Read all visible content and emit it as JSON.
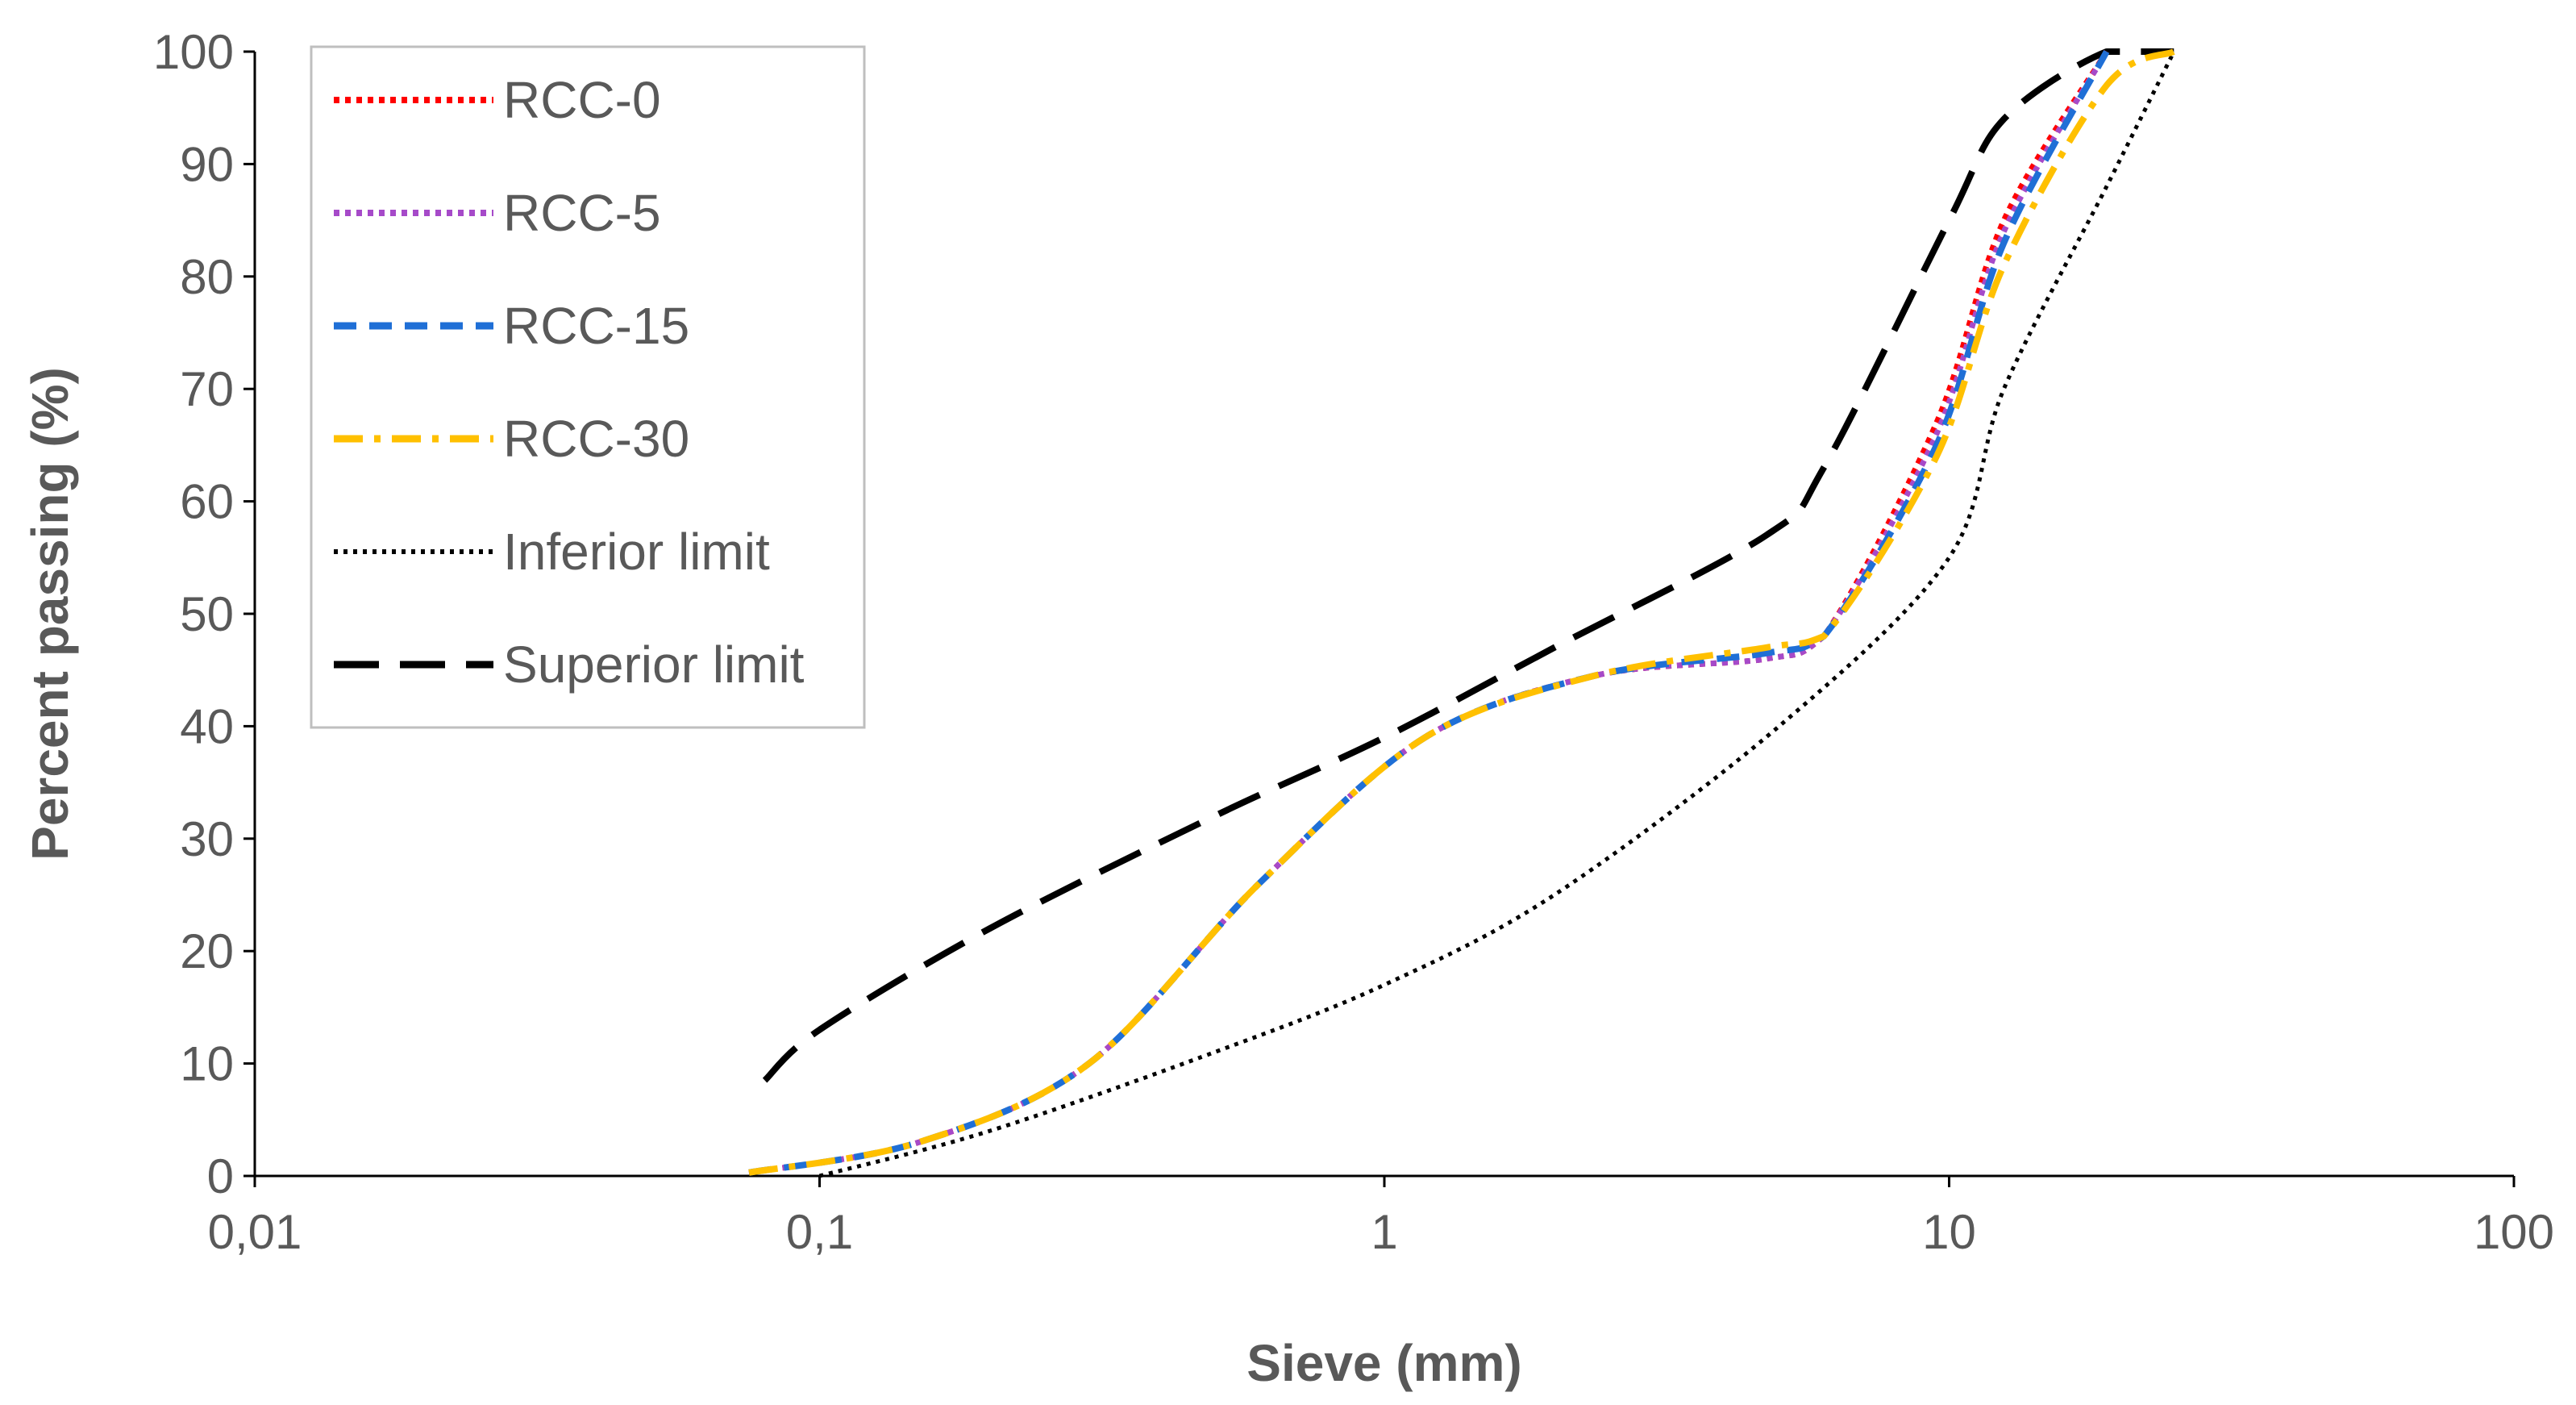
{
  "chart_data": {
    "type": "line",
    "x_scale": "log",
    "xlabel": "Sieve (mm)",
    "ylabel": "Percent passing  (%)",
    "xlim": [
      0.01,
      100
    ],
    "ylim": [
      0,
      100
    ],
    "x_ticks": [
      0.01,
      0.1,
      1,
      10,
      100
    ],
    "x_tick_labels": [
      "0,01",
      "0,1",
      "1",
      "10",
      "100"
    ],
    "y_ticks": [
      0,
      10,
      20,
      30,
      40,
      50,
      60,
      70,
      80,
      90,
      100
    ],
    "y_tick_labels": [
      "0",
      "10",
      "20",
      "30",
      "40",
      "50",
      "60",
      "70",
      "80",
      "90",
      "100"
    ],
    "grid": false,
    "legend_position": "top-left",
    "series": [
      {
        "name": "RCC-0",
        "color": "#FF0000",
        "style": "dotted",
        "x": [
          0.075,
          0.15,
          0.3,
          0.6,
          1.18,
          2.36,
          4.75,
          6,
          9.5,
          12.5,
          19
        ],
        "y": [
          0.3,
          3,
          10,
          26,
          39,
          44.5,
          46,
          48,
          67,
          85,
          100
        ]
      },
      {
        "name": "RCC-5",
        "color": "#A64AC9",
        "style": "dotted",
        "x": [
          0.075,
          0.15,
          0.3,
          0.6,
          1.18,
          2.36,
          4.75,
          6,
          9.5,
          12.5,
          19
        ],
        "y": [
          0.3,
          3,
          10,
          26,
          39,
          44.5,
          46,
          48,
          66,
          84,
          100
        ]
      },
      {
        "name": "RCC-15",
        "color": "#1F6FD6",
        "style": "dashed",
        "x": [
          0.075,
          0.15,
          0.3,
          0.6,
          1.18,
          2.36,
          4.75,
          6,
          9.5,
          12.5,
          19
        ],
        "y": [
          0.3,
          3,
          10,
          26,
          39,
          44.5,
          46.5,
          48,
          65,
          83,
          100
        ]
      },
      {
        "name": "RCC-30",
        "color": "#FFC000",
        "style": "dashdot",
        "x": [
          0.075,
          0.15,
          0.3,
          0.6,
          1.18,
          2.36,
          4.75,
          6,
          9.5,
          12.5,
          19,
          25
        ],
        "y": [
          0.3,
          3,
          10,
          26,
          39,
          44.5,
          47,
          48,
          64,
          81,
          97,
          100
        ]
      },
      {
        "name": "Inferior limit",
        "color": "#000000",
        "style": "dotted-fine",
        "x": [
          0.1,
          0.2,
          0.5,
          1,
          2,
          5,
          10,
          12.5,
          19,
          25
        ],
        "y": [
          0,
          4,
          11,
          17,
          25,
          40,
          55,
          70,
          88,
          100
        ]
      },
      {
        "name": "Superior limit",
        "color": "#000000",
        "style": "longdash",
        "x": [
          0.08,
          0.1,
          0.2,
          0.5,
          1,
          2,
          4.75,
          6,
          10,
          12.5,
          19,
          25
        ],
        "y": [
          8.5,
          13,
          22,
          32,
          39,
          47,
          57,
          63,
          85,
          94,
          100,
          100
        ]
      }
    ]
  }
}
